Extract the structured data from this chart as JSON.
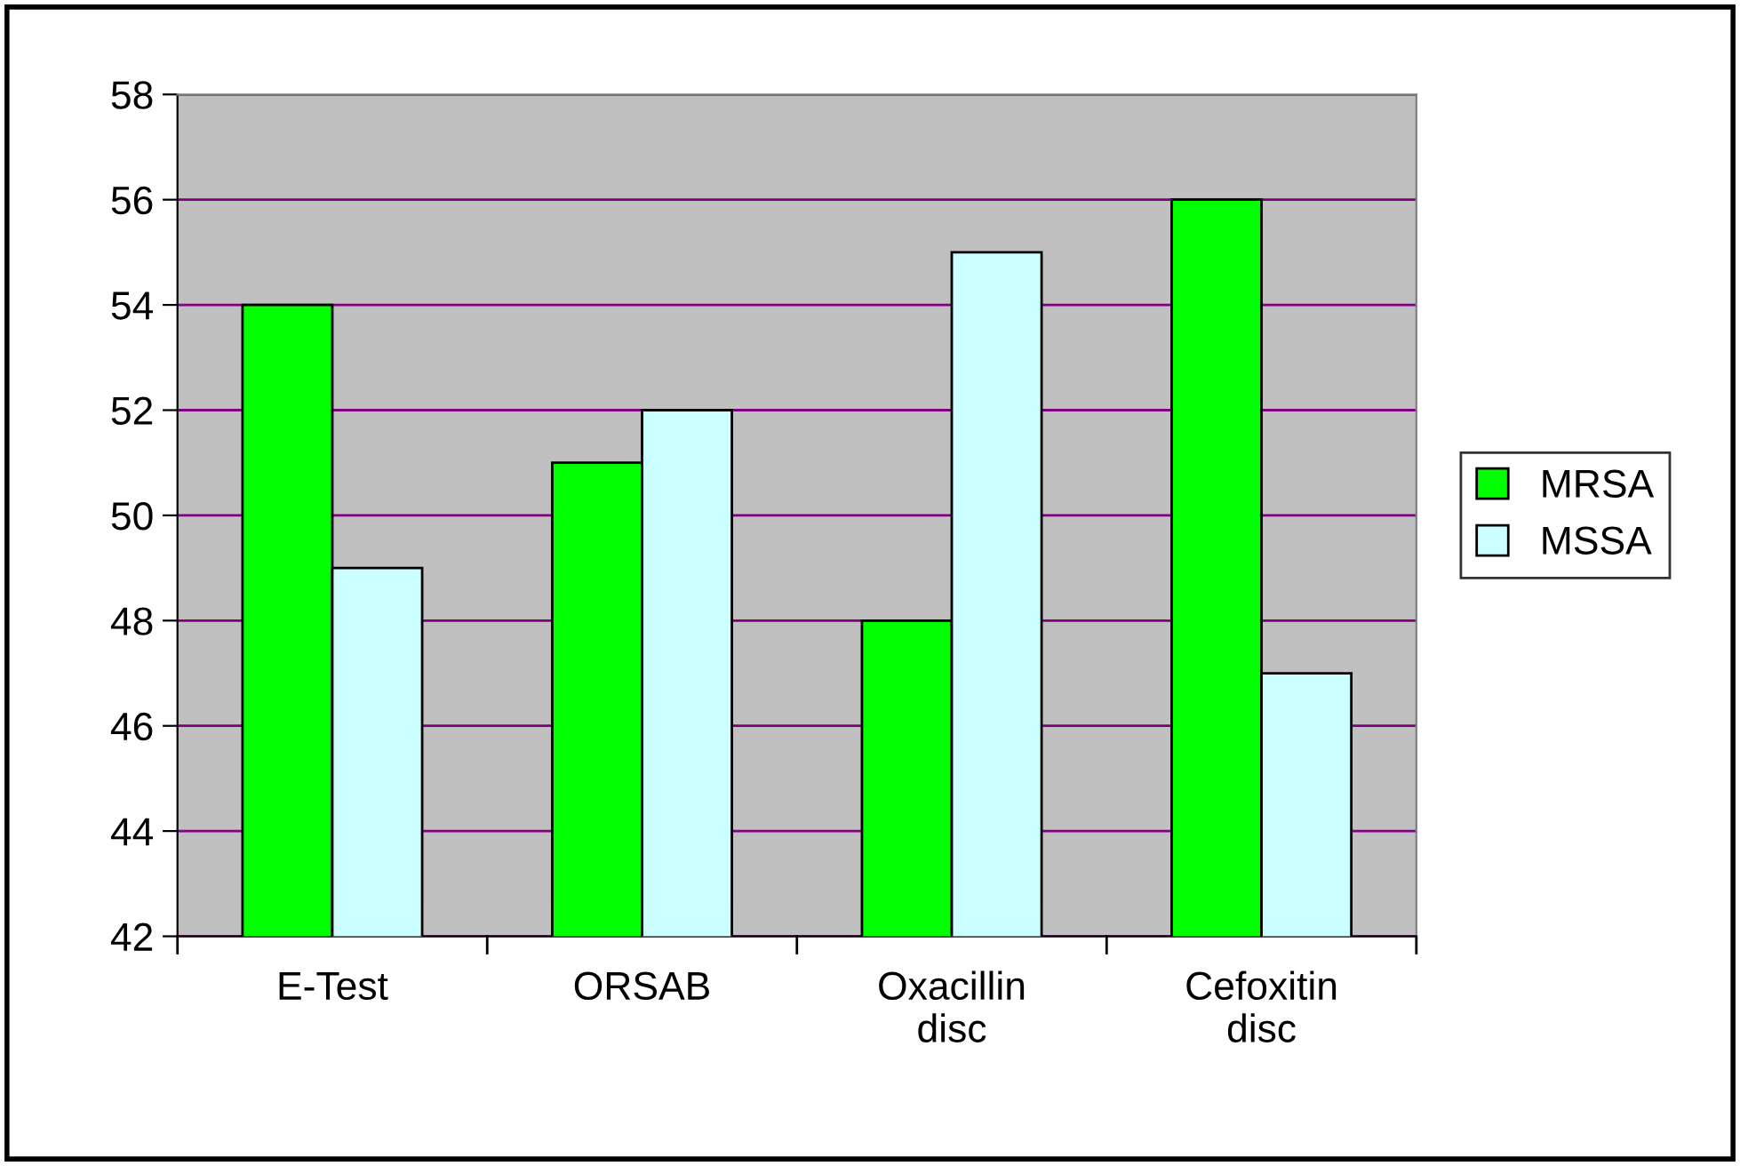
{
  "chart_data": {
    "type": "bar",
    "categories": [
      "E-Test",
      "ORSAB",
      "Oxacillin\ndisc",
      "Cefoxitin\ndisc"
    ],
    "series": [
      {
        "name": "MRSA",
        "color": "#00ff00",
        "values": [
          54,
          51,
          48,
          56
        ]
      },
      {
        "name": "MSSA",
        "color": "#ccffff",
        "values": [
          49,
          52,
          55,
          47
        ]
      }
    ],
    "ylim": [
      42,
      58
    ],
    "yticks": [
      42,
      44,
      46,
      48,
      50,
      52,
      54,
      56,
      58
    ],
    "grid": "y",
    "legend": "right"
  }
}
